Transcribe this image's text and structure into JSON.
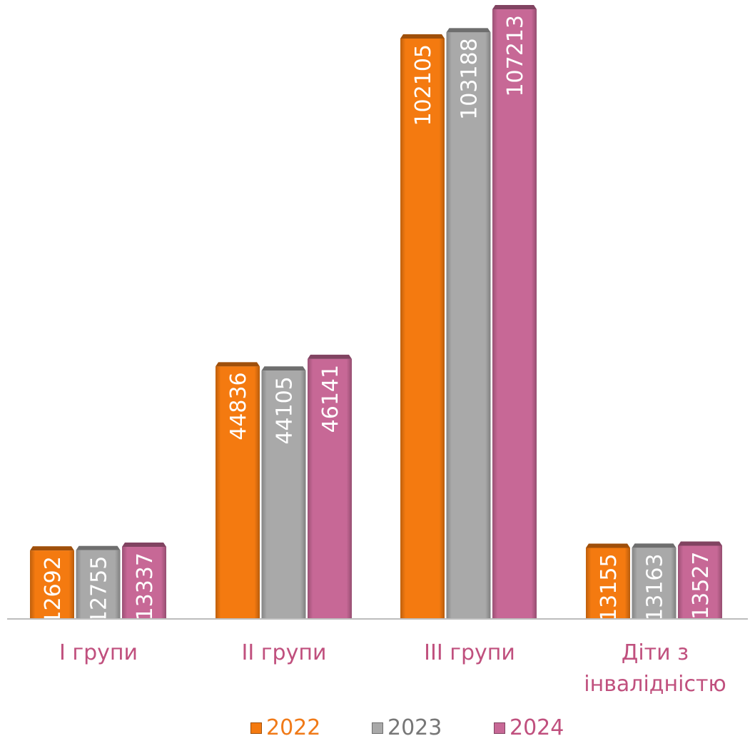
{
  "colors": {
    "s2022": "#f47a10",
    "s2023": "#a9a9a9",
    "s2024": "#c76896",
    "category_label": "#c0507e",
    "axis": "#bdbdbd"
  },
  "chart_data": {
    "type": "bar",
    "categories": [
      "I групи",
      "II групи",
      "III групи",
      "Діти з інвалідністю"
    ],
    "category_lines": [
      [
        "I групи"
      ],
      [
        "II групи"
      ],
      [
        "III групи"
      ],
      [
        "Діти з",
        "інвалідністю"
      ]
    ],
    "series": [
      {
        "name": "2022",
        "values": [
          12692,
          44836,
          102105,
          13155
        ]
      },
      {
        "name": "2023",
        "values": [
          12755,
          44105,
          103188,
          13163
        ]
      },
      {
        "name": "2024",
        "values": [
          13337,
          46141,
          107213,
          13527
        ]
      }
    ],
    "legend_position": "bottom",
    "grid": false,
    "data_labels": "inside-vertical",
    "ylim": [
      0,
      110000
    ]
  }
}
